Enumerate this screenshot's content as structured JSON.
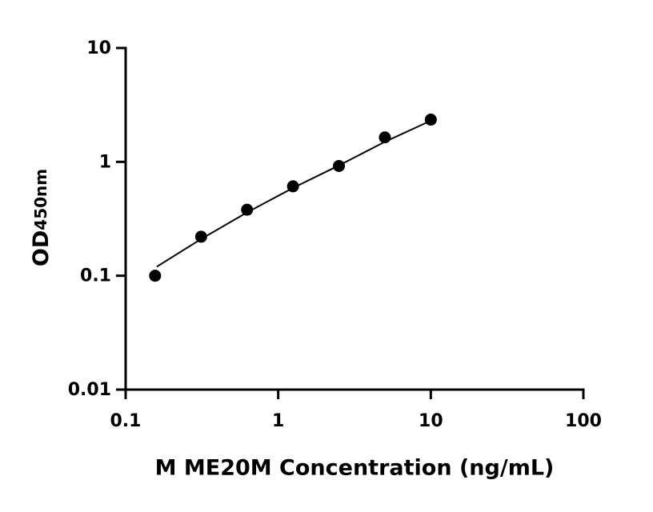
{
  "chart_data": {
    "type": "scatter",
    "x_label": "M ME20M Concentration (ng/mL)",
    "y_label": "OD",
    "y_label_sub": "450nm",
    "x": [
      0.156,
      0.3125,
      0.625,
      1.25,
      2.5,
      5,
      10
    ],
    "values": [
      0.1,
      0.22,
      0.38,
      0.61,
      0.92,
      1.64,
      2.35
    ],
    "fit": {
      "x": [
        0.16,
        0.3125,
        0.625,
        1.25,
        2.5,
        5,
        10
      ],
      "values": [
        0.12,
        0.21,
        0.36,
        0.59,
        0.93,
        1.5,
        2.3
      ]
    },
    "color": "#000000",
    "xscale": "log",
    "yscale": "log",
    "xlim": [
      0.1,
      100
    ],
    "ylim": [
      0.01,
      10
    ],
    "xticks": [
      0.1,
      1,
      10,
      100
    ],
    "yticks": [
      0.01,
      0.1,
      1,
      10
    ]
  }
}
